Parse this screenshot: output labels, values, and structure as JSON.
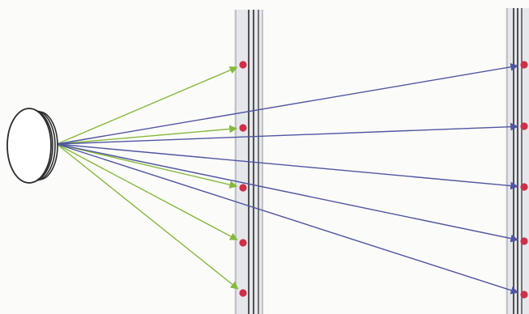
{
  "colors": {
    "background": "#fbfbf9",
    "green_ray": "#86b93b",
    "blue_ray": "#4f56a0",
    "panel_fill": "#dadce4",
    "panel_line": "#2a2a30",
    "dot": "#cf2f48",
    "source_stroke": "#2b2b2b",
    "source_fill": "#ffffff"
  },
  "diagram": {
    "source": {
      "kind": "disc-emitter",
      "icon": "disc-source-icon"
    },
    "near_panel": {
      "marker_count": 5
    },
    "far_panel": {
      "marker_count": 5
    },
    "near_rays": {
      "count": 5,
      "color_key": "green_ray"
    },
    "far_rays": {
      "count": 5,
      "color_key": "blue_ray"
    }
  }
}
